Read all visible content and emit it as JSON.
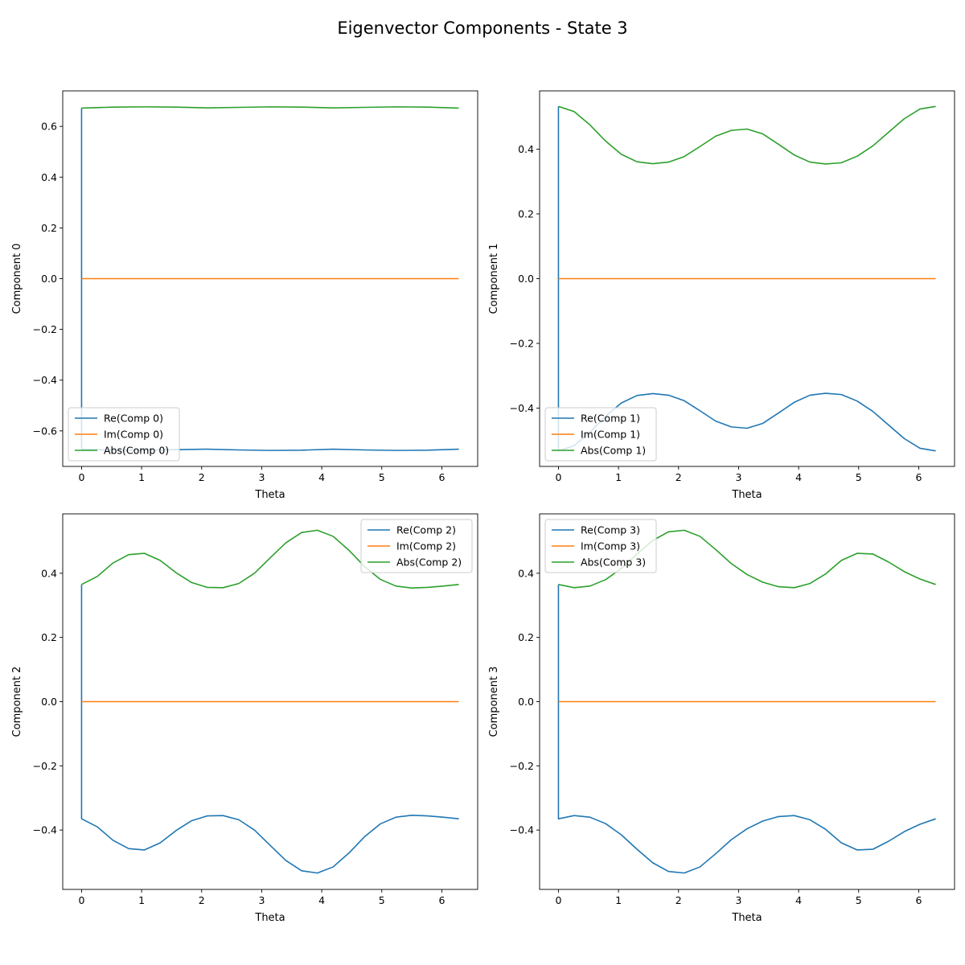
{
  "figure": {
    "title": "Eigenvector Components - State 3"
  },
  "chart_data": [
    {
      "type": "line",
      "xlabel": "Theta",
      "ylabel": "Component 0",
      "xlim": [
        -0.314,
        6.597
      ],
      "ylim": [
        -0.74,
        0.74
      ],
      "xticks": [
        0,
        1,
        2,
        3,
        4,
        5,
        6
      ],
      "yticks": [
        -0.6,
        -0.4,
        -0.2,
        0.0,
        0.2,
        0.4,
        0.6
      ],
      "grid": false,
      "legend_position": "lower-left",
      "series": [
        {
          "name": "Re(Comp 0)",
          "color": "#1f77b4",
          "x": [
            0,
            0,
            0.5236,
            1.0472,
            1.5708,
            2.0944,
            2.618,
            3.1416,
            3.6652,
            4.1888,
            4.7124,
            5.236,
            5.7596,
            6.2832
          ],
          "y": [
            0.672,
            -0.672,
            -0.676,
            -0.676,
            -0.674,
            -0.672,
            -0.675,
            -0.677,
            -0.676,
            -0.672,
            -0.675,
            -0.677,
            -0.676,
            -0.672
          ]
        },
        {
          "name": "Im(Comp 0)",
          "color": "#ff7f0e",
          "x": [
            0,
            6.2832
          ],
          "y": [
            0.0,
            0.0
          ]
        },
        {
          "name": "Abs(Comp 0)",
          "color": "#2ca02c",
          "x": [
            0,
            0.5236,
            1.0472,
            1.5708,
            2.0944,
            2.618,
            3.1416,
            3.6652,
            4.1888,
            4.7124,
            5.236,
            5.7596,
            6.2832
          ],
          "y": [
            0.672,
            0.676,
            0.677,
            0.676,
            0.673,
            0.675,
            0.677,
            0.676,
            0.673,
            0.675,
            0.677,
            0.676,
            0.672
          ]
        }
      ]
    },
    {
      "type": "line",
      "xlabel": "Theta",
      "ylabel": "Component 1",
      "xlim": [
        -0.314,
        6.597
      ],
      "ylim": [
        -0.58,
        0.58
      ],
      "xticks": [
        0,
        1,
        2,
        3,
        4,
        5,
        6
      ],
      "yticks": [
        -0.4,
        -0.2,
        0.0,
        0.2,
        0.4
      ],
      "grid": false,
      "legend_position": "lower-left",
      "series": [
        {
          "name": "Re(Comp 1)",
          "color": "#1f77b4",
          "x": [
            0,
            0,
            0.2618,
            0.5236,
            0.7854,
            1.0472,
            1.309,
            1.5708,
            1.8326,
            2.0944,
            2.3562,
            2.618,
            2.8798,
            3.1416,
            3.4034,
            3.6652,
            3.927,
            4.1888,
            4.4506,
            4.7124,
            4.9742,
            5.236,
            5.4978,
            5.7596,
            6.0214,
            6.2832
          ],
          "y": [
            0.532,
            -0.532,
            -0.516,
            -0.475,
            -0.425,
            -0.384,
            -0.361,
            -0.355,
            -0.36,
            -0.377,
            -0.408,
            -0.44,
            -0.458,
            -0.462,
            -0.447,
            -0.415,
            -0.382,
            -0.36,
            -0.354,
            -0.358,
            -0.378,
            -0.41,
            -0.452,
            -0.494,
            -0.524,
            -0.532
          ]
        },
        {
          "name": "Im(Comp 1)",
          "color": "#ff7f0e",
          "x": [
            0,
            6.2832
          ],
          "y": [
            0.0,
            0.0
          ]
        },
        {
          "name": "Abs(Comp 1)",
          "color": "#2ca02c",
          "x": [
            0,
            0.2618,
            0.5236,
            0.7854,
            1.0472,
            1.309,
            1.5708,
            1.8326,
            2.0944,
            2.3562,
            2.618,
            2.8798,
            3.1416,
            3.4034,
            3.6652,
            3.927,
            4.1888,
            4.4506,
            4.7124,
            4.9742,
            5.236,
            5.4978,
            5.7596,
            6.0214,
            6.2832
          ],
          "y": [
            0.532,
            0.516,
            0.475,
            0.425,
            0.384,
            0.361,
            0.355,
            0.36,
            0.377,
            0.408,
            0.44,
            0.458,
            0.462,
            0.447,
            0.415,
            0.382,
            0.36,
            0.354,
            0.358,
            0.378,
            0.41,
            0.452,
            0.494,
            0.524,
            0.532
          ]
        }
      ]
    },
    {
      "type": "line",
      "xlabel": "Theta",
      "ylabel": "Component 2",
      "xlim": [
        -0.314,
        6.597
      ],
      "ylim": [
        -0.585,
        0.585
      ],
      "xticks": [
        0,
        1,
        2,
        3,
        4,
        5,
        6
      ],
      "yticks": [
        -0.4,
        -0.2,
        0.0,
        0.2,
        0.4
      ],
      "grid": false,
      "legend_position": "upper-right",
      "series": [
        {
          "name": "Re(Comp 2)",
          "color": "#1f77b4",
          "x": [
            0,
            0,
            0.2618,
            0.5236,
            0.7854,
            1.0472,
            1.309,
            1.5708,
            1.8326,
            2.0944,
            2.3562,
            2.618,
            2.8798,
            3.1416,
            3.4034,
            3.6652,
            3.927,
            4.1888,
            4.4506,
            4.7124,
            4.9742,
            5.236,
            5.4978,
            5.7596,
            6.0214,
            6.2832
          ],
          "y": [
            0.365,
            -0.365,
            -0.39,
            -0.432,
            -0.458,
            -0.462,
            -0.44,
            -0.402,
            -0.371,
            -0.356,
            -0.355,
            -0.368,
            -0.4,
            -0.448,
            -0.495,
            -0.527,
            -0.534,
            -0.515,
            -0.472,
            -0.421,
            -0.381,
            -0.36,
            -0.354,
            -0.356,
            -0.36,
            -0.365
          ]
        },
        {
          "name": "Im(Comp 2)",
          "color": "#ff7f0e",
          "x": [
            0,
            6.2832
          ],
          "y": [
            0.0,
            0.0
          ]
        },
        {
          "name": "Abs(Comp 2)",
          "color": "#2ca02c",
          "x": [
            0,
            0.2618,
            0.5236,
            0.7854,
            1.0472,
            1.309,
            1.5708,
            1.8326,
            2.0944,
            2.3562,
            2.618,
            2.8798,
            3.1416,
            3.4034,
            3.6652,
            3.927,
            4.1888,
            4.4506,
            4.7124,
            4.9742,
            5.236,
            5.4978,
            5.7596,
            6.0214,
            6.2832
          ],
          "y": [
            0.365,
            0.39,
            0.432,
            0.458,
            0.462,
            0.44,
            0.402,
            0.371,
            0.356,
            0.355,
            0.368,
            0.4,
            0.448,
            0.495,
            0.527,
            0.534,
            0.515,
            0.472,
            0.421,
            0.381,
            0.36,
            0.354,
            0.356,
            0.36,
            0.365
          ]
        }
      ]
    },
    {
      "type": "line",
      "xlabel": "Theta",
      "ylabel": "Component 3",
      "xlim": [
        -0.314,
        6.597
      ],
      "ylim": [
        -0.585,
        0.585
      ],
      "xticks": [
        0,
        1,
        2,
        3,
        4,
        5,
        6
      ],
      "yticks": [
        -0.4,
        -0.2,
        0.0,
        0.2,
        0.4
      ],
      "grid": false,
      "legend_position": "upper-left",
      "series": [
        {
          "name": "Re(Comp 3)",
          "color": "#1f77b4",
          "x": [
            0,
            0,
            0.2618,
            0.5236,
            0.7854,
            1.0472,
            1.309,
            1.5708,
            1.8326,
            2.0944,
            2.3562,
            2.618,
            2.8798,
            3.1416,
            3.4034,
            3.6652,
            3.927,
            4.1888,
            4.4506,
            4.7124,
            4.9742,
            5.236,
            5.4978,
            5.7596,
            6.0214,
            6.2832
          ],
          "y": [
            0.365,
            -0.365,
            -0.355,
            -0.36,
            -0.38,
            -0.415,
            -0.46,
            -0.502,
            -0.529,
            -0.534,
            -0.515,
            -0.474,
            -0.43,
            -0.396,
            -0.372,
            -0.358,
            -0.355,
            -0.368,
            -0.398,
            -0.44,
            -0.462,
            -0.46,
            -0.435,
            -0.405,
            -0.382,
            -0.365
          ]
        },
        {
          "name": "Im(Comp 3)",
          "color": "#ff7f0e",
          "x": [
            0,
            6.2832
          ],
          "y": [
            0.0,
            0.0
          ]
        },
        {
          "name": "Abs(Comp 3)",
          "color": "#2ca02c",
          "x": [
            0,
            0.2618,
            0.5236,
            0.7854,
            1.0472,
            1.309,
            1.5708,
            1.8326,
            2.0944,
            2.3562,
            2.618,
            2.8798,
            3.1416,
            3.4034,
            3.6652,
            3.927,
            4.1888,
            4.4506,
            4.7124,
            4.9742,
            5.236,
            5.4978,
            5.7596,
            6.0214,
            6.2832
          ],
          "y": [
            0.365,
            0.355,
            0.36,
            0.38,
            0.415,
            0.46,
            0.502,
            0.529,
            0.534,
            0.515,
            0.474,
            0.43,
            0.396,
            0.372,
            0.358,
            0.355,
            0.368,
            0.398,
            0.44,
            0.462,
            0.46,
            0.435,
            0.405,
            0.382,
            0.365
          ]
        }
      ]
    }
  ]
}
